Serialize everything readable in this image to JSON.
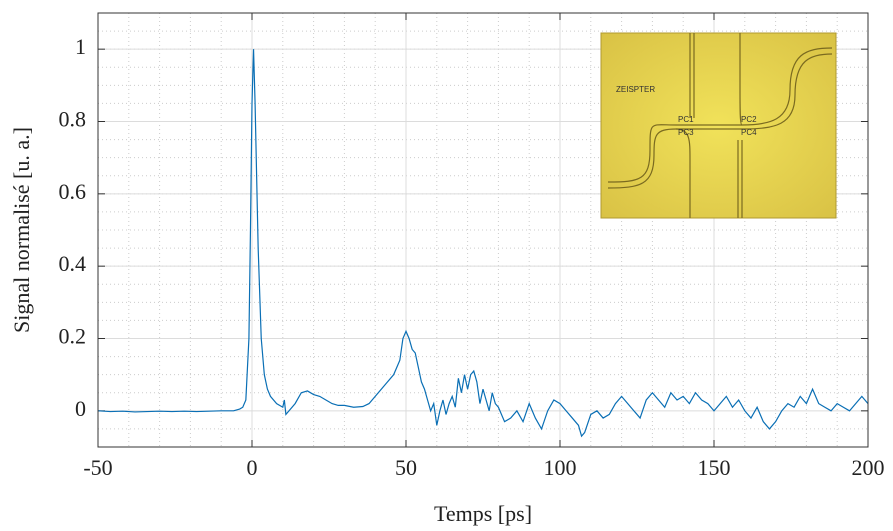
{
  "chart_data": {
    "type": "line",
    "xlabel": "Temps [ps]",
    "ylabel": "Signal normalisé [u. a.]",
    "color": "#0a6fb5",
    "xlim": [
      -50,
      200
    ],
    "xticks": [
      -50,
      0,
      50,
      100,
      150,
      200
    ],
    "ylim": [
      -0.1,
      1.1
    ],
    "yticks": [
      0,
      0.2,
      0.4,
      0.6,
      0.8,
      1
    ],
    "grid": true,
    "x": [
      -50,
      -46,
      -42,
      -38,
      -34,
      -30,
      -26,
      -22,
      -18,
      -14,
      -10,
      -6,
      -4,
      -3,
      -2,
      -1,
      -0.5,
      0,
      0.5,
      1,
      1.5,
      2,
      3,
      4,
      5,
      6,
      8,
      10,
      10.5,
      11,
      12,
      14,
      16,
      18,
      20,
      22,
      24,
      26,
      28,
      30,
      33,
      36,
      38,
      40,
      42,
      44,
      46,
      48,
      49,
      50,
      51,
      52,
      53,
      54,
      55,
      56,
      57,
      58,
      59,
      60,
      61,
      62,
      63,
      64,
      65,
      66,
      67,
      68,
      69,
      70,
      71,
      72,
      73,
      74,
      75,
      76,
      77,
      78,
      79,
      80,
      82,
      84,
      86,
      88,
      90,
      92,
      94,
      96,
      98,
      100,
      102,
      104,
      106,
      107,
      108,
      110,
      112,
      114,
      116,
      118,
      120,
      122,
      124,
      126,
      128,
      130,
      132,
      134,
      136,
      138,
      140,
      142,
      144,
      146,
      148,
      150,
      152,
      154,
      156,
      158,
      160,
      162,
      164,
      166,
      168,
      170,
      172,
      174,
      176,
      178,
      180,
      182,
      184,
      186,
      188,
      190,
      192,
      194,
      196,
      198,
      200
    ],
    "values": [
      0,
      -0.002,
      -0.001,
      -0.003,
      -0.002,
      -0.001,
      -0.002,
      -0.001,
      -0.002,
      -0.001,
      0,
      0,
      0.005,
      0.01,
      0.03,
      0.2,
      0.5,
      0.85,
      1,
      0.85,
      0.65,
      0.45,
      0.2,
      0.1,
      0.06,
      0.04,
      0.02,
      0.01,
      0.03,
      -0.01,
      0,
      0.02,
      0.05,
      0.055,
      0.045,
      0.04,
      0.03,
      0.02,
      0.015,
      0.015,
      0.01,
      0.012,
      0.02,
      0.04,
      0.06,
      0.08,
      0.1,
      0.14,
      0.2,
      0.22,
      0.2,
      0.17,
      0.16,
      0.12,
      0.08,
      0.06,
      0.03,
      0,
      0.02,
      -0.04,
      0,
      0.03,
      -0.01,
      0.02,
      0.04,
      0.01,
      0.09,
      0.05,
      0.1,
      0.06,
      0.1,
      0.11,
      0.08,
      0.02,
      0.06,
      0.03,
      0,
      0.05,
      0.02,
      0.01,
      -0.03,
      -0.02,
      0,
      -0.03,
      0.02,
      -0.02,
      -0.05,
      0,
      0.03,
      0.02,
      0,
      -0.02,
      -0.04,
      -0.07,
      -0.06,
      -0.01,
      0,
      -0.02,
      -0.01,
      0.02,
      0.04,
      0.02,
      0,
      -0.02,
      0.03,
      0.05,
      0.03,
      0.01,
      0.05,
      0.03,
      0.04,
      0.02,
      0.05,
      0.03,
      0.02,
      0,
      0.02,
      0.04,
      0.01,
      0.03,
      0,
      -0.02,
      0.01,
      -0.03,
      -0.05,
      -0.03,
      0,
      0.02,
      0.01,
      0.04,
      0.02,
      0.06,
      0.02,
      0.01,
      0,
      0.02,
      0.01,
      0,
      0.02,
      0.04,
      0.02
    ]
  },
  "inset": {
    "labels": [
      "PC1",
      "PC2",
      "PC3",
      "PC4"
    ]
  }
}
